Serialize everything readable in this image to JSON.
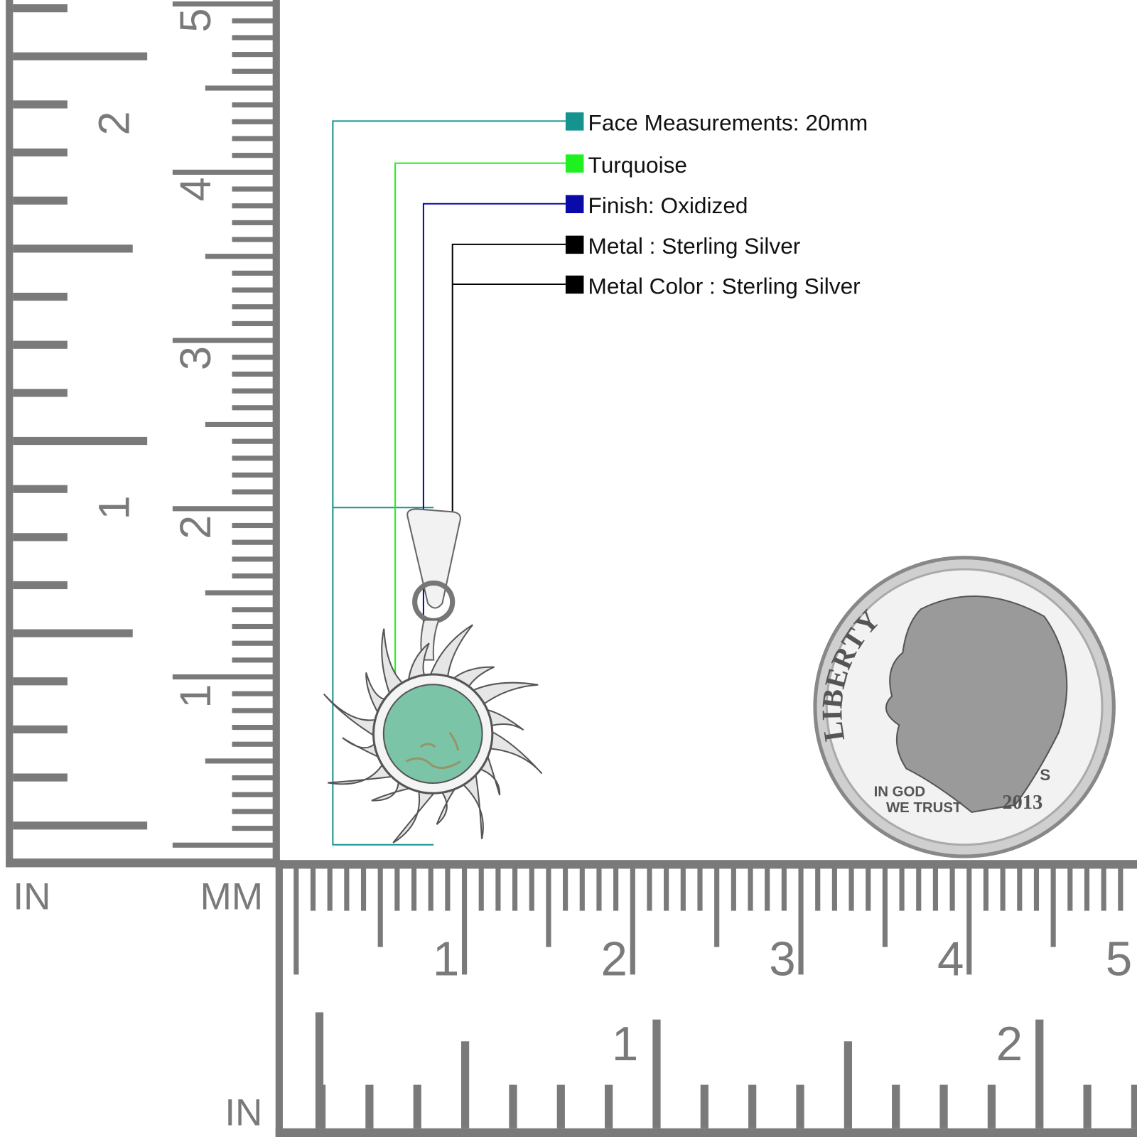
{
  "callouts": [
    {
      "label": "Face Measurements: 20mm",
      "color": "#15938f"
    },
    {
      "label": "Turquoise",
      "color": "#1ff01f"
    },
    {
      "label": "Finish: Oxidized",
      "color": "#0a0aa8"
    },
    {
      "label": "Metal : Sterling Silver",
      "color": "#000000"
    },
    {
      "label": "Metal Color : Sterling Silver",
      "color": "#000000"
    }
  ],
  "rulers": {
    "left_in_label": "IN",
    "left_mm_label": "MM",
    "bottom_in_label": "IN",
    "mm_numbers": [
      "1",
      "2",
      "3",
      "4",
      "5"
    ],
    "in_numbers": [
      "1",
      "2"
    ],
    "color": "#7a7a7a"
  },
  "coin": {
    "liberty": "LIBERTY",
    "motto_line1": "IN GOD",
    "motto_line2": "WE TRUST",
    "year": "2013",
    "mint_mark": "S"
  },
  "product": {
    "stone_color": "#7cc4a8",
    "metal_color": "#e6e6e6"
  }
}
